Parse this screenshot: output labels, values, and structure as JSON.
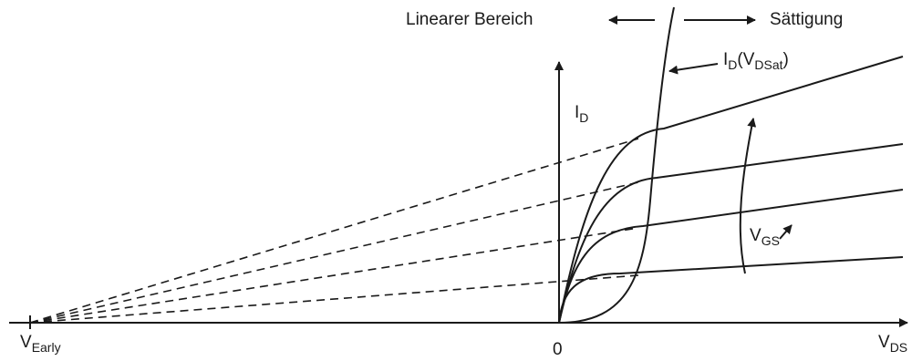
{
  "labels": {
    "linear_region": "Linearer Bereich",
    "saturation": "Sättigung",
    "id_symbol": "I",
    "id_sub": "D",
    "id_vdsat_main": "I",
    "id_vdsat_sub1": "D",
    "id_vdsat_mid": "(V",
    "id_vdsat_sub2": "DSat",
    "id_vdsat_end": ")",
    "vgs_main": "V",
    "vgs_sub": "GS",
    "vds_main": "V",
    "vds_sub": "DS",
    "vearly_main": "V",
    "vearly_sub": "Early",
    "origin": "0"
  },
  "colors": {
    "line": "#1a1a1a",
    "background": "#ffffff"
  },
  "icons": [
    "arrow-left-icon",
    "arrow-right-icon",
    "vgs-increase-arrow-icon"
  ]
}
